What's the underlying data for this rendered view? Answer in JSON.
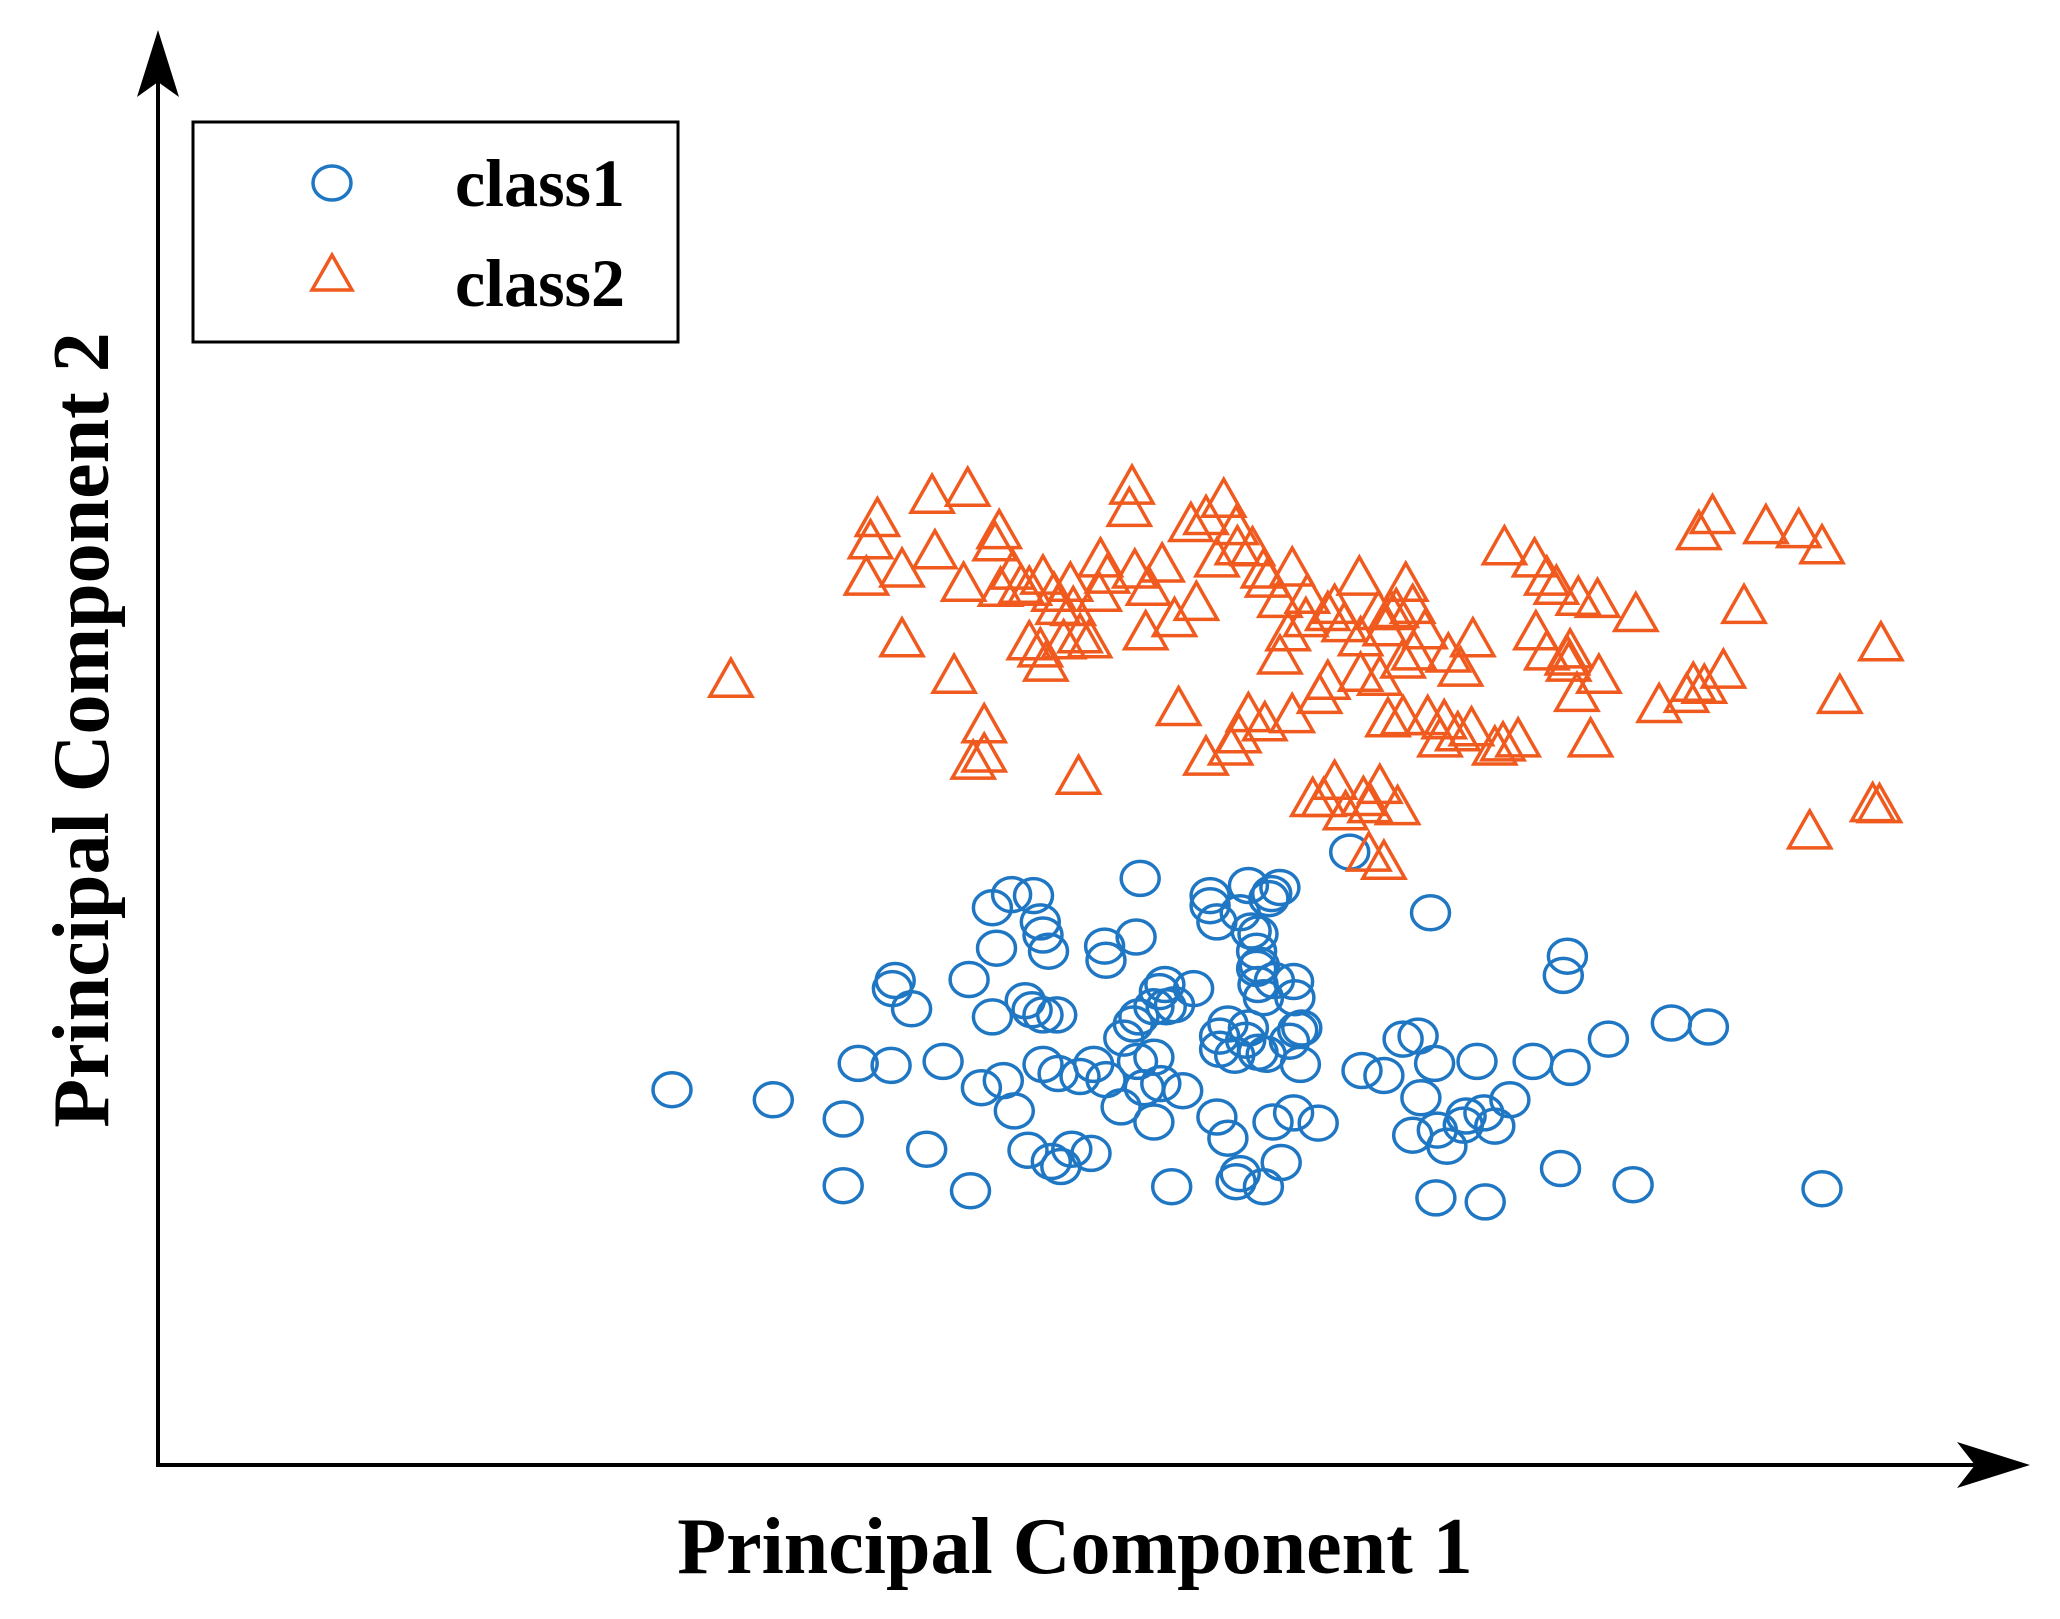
{
  "chart_data": {
    "type": "scatter",
    "title": "",
    "xlabel": "Principal Component 1",
    "ylabel": "Principal Component 2",
    "xlim": [
      0,
      100
    ],
    "ylim": [
      0,
      100
    ],
    "grid": false,
    "legend_position": "top-left",
    "series": [
      {
        "name": "class1",
        "marker": "circle",
        "color": "#1f77c4",
        "points": [
          [
            16.0,
            21.0
          ],
          [
            23.4,
            20.0
          ],
          [
            28.5,
            18.1
          ],
          [
            28.5,
            11.5
          ],
          [
            34.6,
            15.1
          ],
          [
            33.5,
            29.0
          ],
          [
            32.1,
            31.0
          ],
          [
            32.3,
            31.8
          ],
          [
            29.6,
            23.6
          ],
          [
            32.0,
            23.4
          ],
          [
            35.8,
            23.8
          ],
          [
            37.7,
            31.9
          ],
          [
            37.8,
            11.0
          ],
          [
            39.4,
            39.0
          ],
          [
            40.8,
            40.3
          ],
          [
            42.4,
            40.2
          ],
          [
            39.7,
            35.0
          ],
          [
            42.9,
            37.6
          ],
          [
            43.1,
            36.3
          ],
          [
            43.5,
            34.7
          ],
          [
            39.4,
            28.2
          ],
          [
            43.1,
            28.4
          ],
          [
            44.1,
            28.4
          ],
          [
            41.8,
            29.8
          ],
          [
            42.3,
            28.9
          ],
          [
            38.6,
            21.2
          ],
          [
            40.2,
            21.9
          ],
          [
            41.0,
            18.9
          ],
          [
            43.1,
            23.5
          ],
          [
            44.2,
            22.6
          ],
          [
            45.8,
            22.3
          ],
          [
            46.8,
            23.5
          ],
          [
            42.0,
            15.0
          ],
          [
            43.7,
            13.9
          ],
          [
            44.4,
            13.4
          ],
          [
            45.2,
            15.1
          ],
          [
            46.6,
            14.7
          ],
          [
            47.7,
            22.0
          ],
          [
            49.0,
            26.1
          ],
          [
            49.7,
            27.5
          ],
          [
            50.1,
            28.2
          ],
          [
            51.2,
            29.2
          ],
          [
            52.1,
            29.2
          ],
          [
            48.8,
            19.3
          ],
          [
            50.0,
            23.8
          ],
          [
            51.2,
            24.2
          ],
          [
            51.7,
            21.6
          ],
          [
            51.6,
            30.7
          ],
          [
            52.0,
            31.4
          ],
          [
            52.7,
            29.4
          ],
          [
            47.7,
            33.8
          ],
          [
            50.2,
            41.9
          ],
          [
            47.6,
            35.2
          ],
          [
            49.9,
            36.1
          ],
          [
            50.5,
            21.2
          ],
          [
            54.1,
            31.0
          ],
          [
            56.0,
            26.3
          ],
          [
            56.6,
            27.5
          ],
          [
            56.0,
            25.0
          ],
          [
            57.1,
            24.4
          ],
          [
            58.8,
            24.7
          ],
          [
            59.4,
            24.5
          ],
          [
            57.9,
            25.9
          ],
          [
            58.1,
            27.1
          ],
          [
            58.8,
            31.4
          ],
          [
            58.7,
            33.0
          ],
          [
            60.0,
            31.8
          ],
          [
            58.7,
            34.7
          ],
          [
            55.3,
            40.2
          ],
          [
            55.3,
            39.2
          ],
          [
            57.5,
            38.5
          ],
          [
            58.3,
            36.7
          ],
          [
            58.8,
            36.4
          ],
          [
            58.9,
            33.3
          ],
          [
            59.2,
            30.1
          ],
          [
            55.8,
            37.6
          ],
          [
            53.3,
            20.9
          ],
          [
            51.2,
            17.8
          ],
          [
            52.5,
            11.4
          ],
          [
            55.8,
            18.3
          ],
          [
            56.6,
            16.2
          ],
          [
            57.5,
            12.7
          ],
          [
            57.2,
            11.9
          ],
          [
            59.9,
            17.8
          ],
          [
            59.8,
            40.4
          ],
          [
            60.4,
            41.0
          ],
          [
            59.6,
            39.9
          ],
          [
            61.4,
            31.7
          ],
          [
            61.5,
            30.1
          ],
          [
            61.7,
            26.9
          ],
          [
            61.9,
            23.5
          ],
          [
            61.1,
            25.8
          ],
          [
            61.4,
            18.7
          ],
          [
            59.2,
            11.4
          ],
          [
            60.5,
            13.8
          ],
          [
            62.0,
            27.1
          ],
          [
            63.2,
            17.7
          ],
          [
            65.5,
            44.5
          ],
          [
            66.4,
            22.9
          ],
          [
            68.0,
            22.4
          ],
          [
            69.4,
            26.0
          ],
          [
            70.5,
            26.3
          ],
          [
            70.7,
            20.2
          ],
          [
            71.4,
            38.5
          ],
          [
            71.7,
            23.6
          ],
          [
            70.1,
            16.5
          ],
          [
            71.9,
            17.0
          ],
          [
            72.6,
            15.4
          ],
          [
            73.8,
            17.5
          ],
          [
            74.0,
            18.4
          ],
          [
            71.8,
            10.3
          ],
          [
            75.4,
            9.9
          ],
          [
            74.8,
            23.8
          ],
          [
            75.3,
            18.7
          ],
          [
            76.1,
            17.4
          ],
          [
            77.2,
            20.0
          ],
          [
            78.9,
            23.8
          ],
          [
            81.6,
            23.2
          ],
          [
            81.1,
            32.3
          ],
          [
            81.4,
            34.2
          ],
          [
            80.9,
            13.2
          ],
          [
            84.4,
            26.0
          ],
          [
            86.2,
            11.6
          ],
          [
            89.0,
            27.6
          ],
          [
            91.7,
            27.2
          ],
          [
            100.0,
            11.2
          ],
          [
            58.1,
            41.2
          ]
        ]
      },
      {
        "name": "class2",
        "marker": "triangle",
        "color": "#f05a1e",
        "points": [
          [
            20.3,
            61.5
          ],
          [
            31.0,
            77.4
          ],
          [
            30.5,
            75.2
          ],
          [
            30.2,
            71.6
          ],
          [
            32.8,
            72.4
          ],
          [
            35.0,
            79.7
          ],
          [
            35.2,
            74.2
          ],
          [
            37.3,
            71.0
          ],
          [
            32.8,
            65.5
          ],
          [
            37.6,
            80.4
          ],
          [
            39.9,
            76.2
          ],
          [
            39.6,
            75.0
          ],
          [
            40.9,
            72.2
          ],
          [
            40.0,
            70.5
          ],
          [
            41.5,
            70.8
          ],
          [
            42.1,
            70.6
          ],
          [
            43.1,
            71.7
          ],
          [
            43.9,
            70.0
          ],
          [
            44.2,
            68.7
          ],
          [
            45.1,
            71.0
          ],
          [
            36.6,
            61.9
          ],
          [
            38.8,
            57.0
          ],
          [
            38.0,
            53.4
          ],
          [
            38.8,
            54.1
          ],
          [
            45.7,
            51.9
          ],
          [
            42.1,
            65.2
          ],
          [
            42.9,
            64.5
          ],
          [
            43.3,
            63.1
          ],
          [
            44.6,
            65.3
          ],
          [
            45.3,
            68.6
          ],
          [
            45.8,
            65.9
          ],
          [
            46.5,
            65.4
          ],
          [
            47.2,
            70.0
          ],
          [
            47.3,
            73.4
          ],
          [
            47.8,
            71.8
          ],
          [
            49.6,
            80.6
          ],
          [
            50.6,
            66.2
          ],
          [
            51.8,
            72.9
          ],
          [
            52.7,
            67.5
          ],
          [
            54.3,
            69.1
          ],
          [
            53.0,
            58.7
          ],
          [
            49.4,
            78.4
          ],
          [
            49.8,
            72.3
          ],
          [
            50.8,
            70.6
          ],
          [
            53.9,
            76.9
          ],
          [
            56.3,
            79.3
          ],
          [
            55.0,
            77.6
          ],
          [
            55.8,
            73.4
          ],
          [
            57.2,
            76.6
          ],
          [
            57.3,
            74.6
          ],
          [
            58.4,
            74.5
          ],
          [
            59.2,
            72.3
          ],
          [
            59.5,
            71.4
          ],
          [
            60.4,
            69.4
          ],
          [
            61.3,
            72.5
          ],
          [
            62.4,
            69.8
          ],
          [
            64.4,
            68.8
          ],
          [
            66.2,
            71.6
          ],
          [
            67.6,
            68.2
          ],
          [
            68.1,
            66.6
          ],
          [
            68.5,
            68.2
          ],
          [
            68.9,
            68.4
          ],
          [
            69.6,
            71.0
          ],
          [
            70.1,
            68.8
          ],
          [
            71.0,
            66.3
          ],
          [
            72.7,
            64.0
          ],
          [
            73.6,
            62.6
          ],
          [
            74.5,
            65.5
          ],
          [
            76.8,
            74.6
          ],
          [
            79.0,
            73.4
          ],
          [
            79.9,
            71.6
          ],
          [
            80.6,
            70.7
          ],
          [
            82.2,
            69.6
          ],
          [
            83.6,
            69.4
          ],
          [
            82.1,
            60.1
          ],
          [
            81.6,
            64.4
          ],
          [
            81.5,
            63.1
          ],
          [
            83.7,
            61.9
          ],
          [
            83.1,
            55.6
          ],
          [
            86.4,
            68.0
          ],
          [
            88.1,
            59.0
          ],
          [
            90.1,
            60.0
          ],
          [
            90.6,
            61.1
          ],
          [
            91.4,
            60.9
          ],
          [
            92.8,
            62.4
          ],
          [
            94.3,
            68.8
          ],
          [
            92.0,
            77.7
          ],
          [
            91.0,
            76.1
          ],
          [
            95.9,
            76.7
          ],
          [
            98.3,
            76.3
          ],
          [
            100.0,
            74.7
          ],
          [
            104.3,
            65.1
          ],
          [
            101.3,
            59.9
          ],
          [
            99.1,
            46.5
          ],
          [
            103.7,
            49.2
          ],
          [
            104.2,
            49.1
          ],
          [
            55.0,
            53.8
          ],
          [
            56.8,
            54.8
          ],
          [
            58.1,
            58.1
          ],
          [
            57.4,
            56.0
          ],
          [
            59.3,
            57.2
          ],
          [
            61.3,
            58.0
          ],
          [
            63.3,
            59.9
          ],
          [
            63.9,
            61.3
          ],
          [
            66.3,
            62.1
          ],
          [
            67.7,
            61.7
          ],
          [
            69.4,
            63.4
          ],
          [
            70.2,
            64.2
          ],
          [
            68.3,
            57.6
          ],
          [
            69.4,
            57.8
          ],
          [
            71.2,
            57.8
          ],
          [
            72.4,
            57.4
          ],
          [
            72.1,
            55.6
          ],
          [
            73.4,
            56.2
          ],
          [
            74.4,
            56.7
          ],
          [
            76.1,
            54.8
          ],
          [
            79.1,
            66.2
          ],
          [
            79.9,
            64.2
          ],
          [
            81.4,
            63.7
          ],
          [
            60.4,
            63.8
          ],
          [
            61.0,
            66.1
          ],
          [
            62.3,
            67.5
          ],
          [
            63.9,
            68.1
          ],
          [
            65.1,
            67.0
          ],
          [
            66.3,
            65.6
          ],
          [
            76.7,
            55.2
          ],
          [
            77.8,
            55.6
          ],
          [
            62.8,
            49.7
          ],
          [
            65.2,
            48.4
          ],
          [
            67.0,
            49.1
          ],
          [
            69.0,
            48.9
          ],
          [
            66.5,
            49.8
          ],
          [
            67.7,
            51.0
          ],
          [
            64.4,
            51.4
          ],
          [
            63.6,
            49.7
          ],
          [
            66.9,
            44.3
          ],
          [
            68.0,
            43.5
          ]
        ]
      }
    ]
  }
}
